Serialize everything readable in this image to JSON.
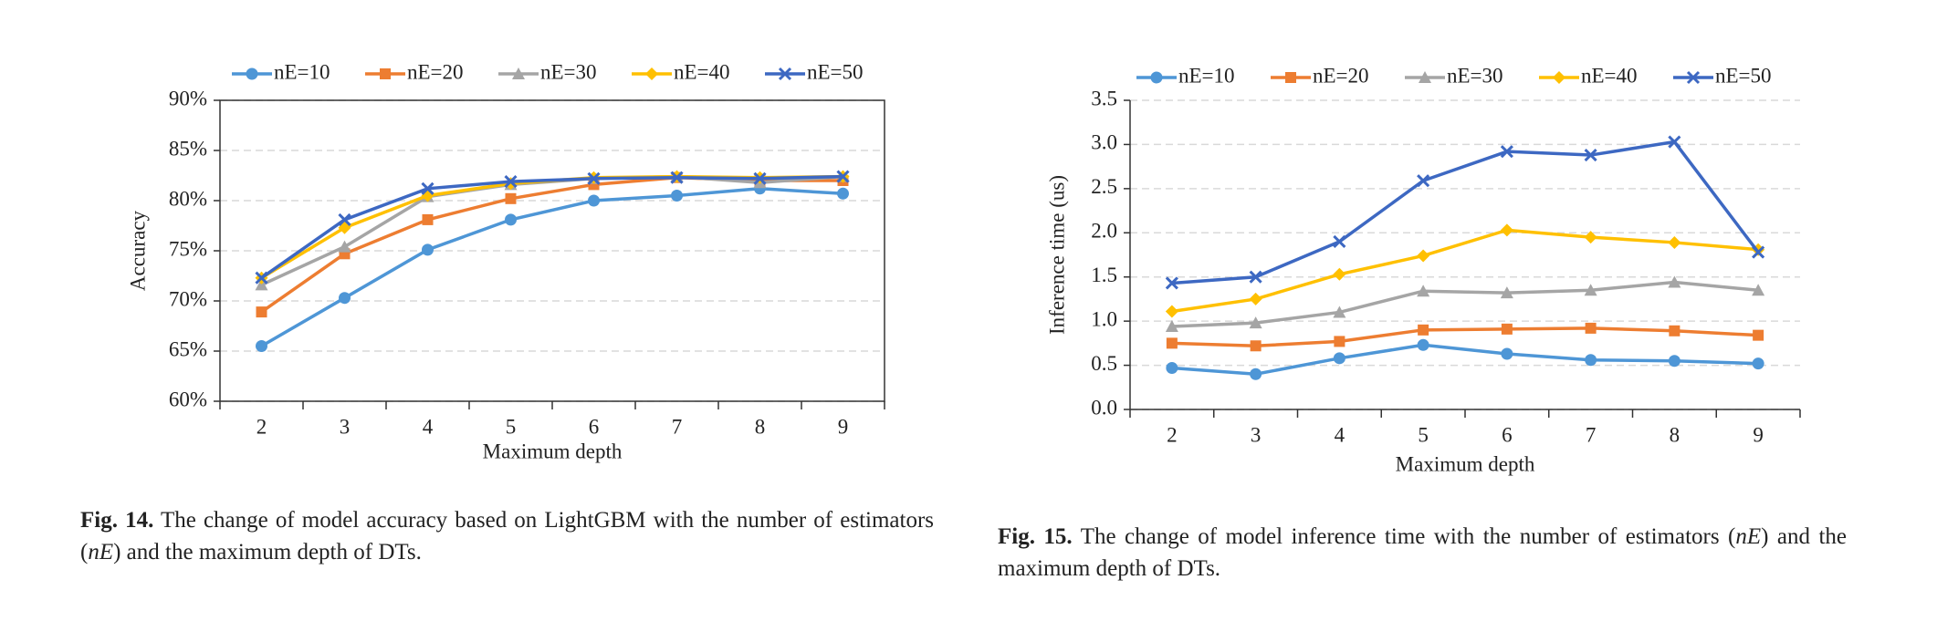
{
  "chart_data": [
    {
      "type": "line",
      "y_label": "Accuracy",
      "x_label": "Maximum depth",
      "categories": [
        "2",
        "3",
        "4",
        "5",
        "6",
        "7",
        "8",
        "9"
      ],
      "ylim": [
        60,
        90
      ],
      "yticks": [
        {
          "value": 60,
          "label": "60%"
        },
        {
          "value": 65,
          "label": "65%"
        },
        {
          "value": 70,
          "label": "70%"
        },
        {
          "value": 75,
          "label": "75%"
        },
        {
          "value": 80,
          "label": "80%"
        },
        {
          "value": 85,
          "label": "85%"
        },
        {
          "value": 90,
          "label": "90%"
        }
      ],
      "grid": true,
      "box": true,
      "series": [
        {
          "name": "nE=10",
          "color": "#4e96d6",
          "marker": "circle",
          "values": [
            65.5,
            70.3,
            75.1,
            78.1,
            80.0,
            80.5,
            81.2,
            80.7
          ]
        },
        {
          "name": "nE=20",
          "color": "#ed7d31",
          "marker": "square",
          "values": [
            68.9,
            74.7,
            78.1,
            80.2,
            81.6,
            82.3,
            82.0,
            82.0
          ]
        },
        {
          "name": "nE=30",
          "color": "#a5a5a5",
          "marker": "triangle",
          "values": [
            71.6,
            75.4,
            80.4,
            81.6,
            82.2,
            82.4,
            81.8,
            82.4
          ]
        },
        {
          "name": "nE=40",
          "color": "#ffc000",
          "marker": "diamond",
          "values": [
            72.3,
            77.3,
            80.5,
            81.7,
            82.3,
            82.4,
            82.3,
            82.4
          ]
        },
        {
          "name": "nE=50",
          "color": "#3d68c2",
          "marker": "x",
          "values": [
            72.3,
            78.1,
            81.2,
            81.9,
            82.2,
            82.3,
            82.2,
            82.4
          ]
        }
      ],
      "caption": {
        "label": "Fig. 14.",
        "text_before": " The change of model accuracy based on LightGBM with the number of estimators (",
        "italic": "nE",
        "text_after": ") and the maximum depth of DTs."
      }
    },
    {
      "type": "line",
      "y_label": "Inference time (us)",
      "x_label": "Maximum depth",
      "categories": [
        "2",
        "3",
        "4",
        "5",
        "6",
        "7",
        "8",
        "9"
      ],
      "ylim": [
        0,
        3.5
      ],
      "yticks": [
        {
          "value": 0,
          "label": "0.0"
        },
        0.5,
        {
          "value": 1,
          "label": "1.0"
        },
        1.5,
        {
          "value": 2,
          "label": "2.0"
        },
        2.5,
        {
          "value": 3,
          "label": "3.0"
        },
        3.5
      ],
      "grid": true,
      "box": false,
      "series": [
        {
          "name": "nE=10",
          "color": "#4e96d6",
          "marker": "circle",
          "values": [
            0.47,
            0.4,
            0.58,
            0.73,
            0.63,
            0.56,
            0.55,
            0.52
          ]
        },
        {
          "name": "nE=20",
          "color": "#ed7d31",
          "marker": "square",
          "values": [
            0.75,
            0.72,
            0.77,
            0.9,
            0.91,
            0.92,
            0.89,
            0.84
          ]
        },
        {
          "name": "nE=30",
          "color": "#a5a5a5",
          "marker": "triangle",
          "values": [
            0.94,
            0.98,
            1.1,
            1.34,
            1.32,
            1.35,
            1.44,
            1.35
          ]
        },
        {
          "name": "nE=40",
          "color": "#ffc000",
          "marker": "diamond",
          "values": [
            1.11,
            1.25,
            1.53,
            1.74,
            2.03,
            1.95,
            1.89,
            1.81
          ]
        },
        {
          "name": "nE=50",
          "color": "#3d68c2",
          "marker": "x",
          "values": [
            1.43,
            1.5,
            1.9,
            2.59,
            2.92,
            2.88,
            3.03,
            1.78
          ]
        }
      ],
      "caption": {
        "label": "Fig. 15.",
        "text_before": " The change of model inference time with the number of estimators (",
        "italic": "nE",
        "text_after": ") and the maximum depth of DTs."
      }
    }
  ]
}
